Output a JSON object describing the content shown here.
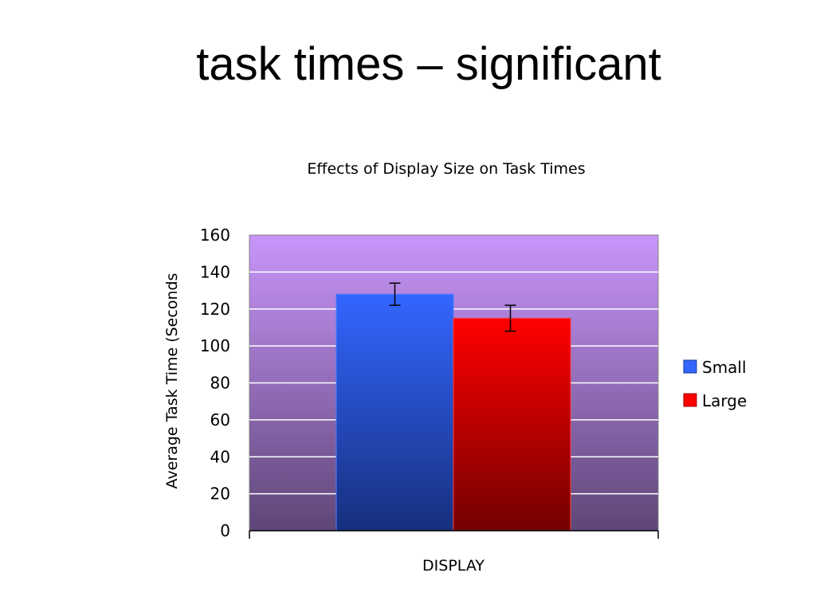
{
  "slide": {
    "title": "task times – significant"
  },
  "colors": {
    "small": "#3366ff",
    "large": "#ff0000",
    "plot_top": "#c995fb",
    "plot_bottom": "#5e4677"
  },
  "chart_data": {
    "type": "bar",
    "title": "Effects of Display Size on Task Times",
    "xlabel": "DISPLAY",
    "ylabel": "Average Task Time (Seconds",
    "categories": [
      ""
    ],
    "series": [
      {
        "name": "Small",
        "values": [
          128
        ],
        "error": [
          6
        ]
      },
      {
        "name": "Large",
        "values": [
          115
        ],
        "error": [
          7
        ]
      }
    ],
    "ylim": [
      0,
      160
    ],
    "yticks": [
      0,
      20,
      40,
      60,
      80,
      100,
      120,
      140,
      160
    ],
    "grid": true,
    "legend": "right"
  }
}
